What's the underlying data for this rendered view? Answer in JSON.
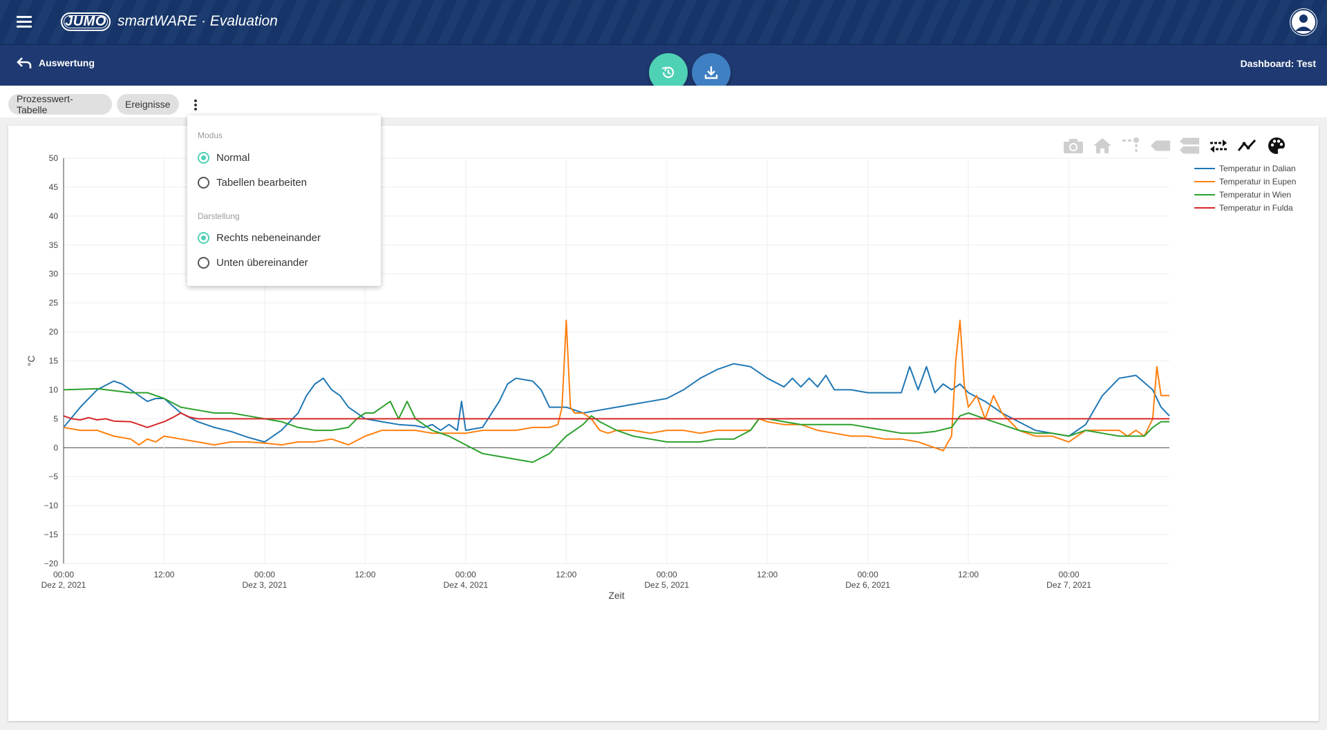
{
  "header": {
    "brand": "JUMO",
    "app_name": "smartWARE · Evaluation",
    "menu_icon": "menu-icon",
    "user_icon": "user-avatar-icon"
  },
  "subheader": {
    "back_label": "Auswertung",
    "dashboard_title": "Dashboard: Test"
  },
  "tabs": [
    "Prozesswert-Tabelle",
    "Ereignisse"
  ],
  "menu": {
    "section1": "Modus",
    "opt1": "Normal",
    "opt2": "Tabellen bearbeiten",
    "section2": "Darstellung",
    "opt3": "Rechts nebeneinander",
    "opt4": "Unten übereinander"
  },
  "colors": {
    "header": "#17366b",
    "accent": "#4fd1b5",
    "download": "#3f7fc3"
  },
  "chart_data": {
    "type": "line",
    "title": "",
    "xlabel": "Zeit",
    "ylabel": "°C",
    "ylim": [
      -20,
      50
    ],
    "xlim": [
      0,
      132
    ],
    "yticks": [
      -20,
      -15,
      -10,
      -5,
      0,
      5,
      10,
      15,
      20,
      25,
      30,
      35,
      40,
      45,
      50
    ],
    "xticks": [
      {
        "x": 0,
        "l1": "00:00",
        "l2": "Dez 2, 2021"
      },
      {
        "x": 12,
        "l1": "12:00",
        "l2": ""
      },
      {
        "x": 24,
        "l1": "00:00",
        "l2": "Dez 3, 2021"
      },
      {
        "x": 36,
        "l1": "12:00",
        "l2": ""
      },
      {
        "x": 48,
        "l1": "00:00",
        "l2": "Dez 4, 2021"
      },
      {
        "x": 60,
        "l1": "12:00",
        "l2": ""
      },
      {
        "x": 72,
        "l1": "00:00",
        "l2": "Dez 5, 2021"
      },
      {
        "x": 84,
        "l1": "12:00",
        "l2": ""
      },
      {
        "x": 96,
        "l1": "00:00",
        "l2": "Dez 6, 2021"
      },
      {
        "x": 108,
        "l1": "12:00",
        "l2": ""
      },
      {
        "x": 120,
        "l1": "00:00",
        "l2": "Dez 7, 2021"
      }
    ],
    "legend_position": "top-right",
    "series": [
      {
        "name": "Temperatur in Dalian",
        "color": "#1f77b4",
        "points": [
          [
            0,
            3.5
          ],
          [
            2,
            7
          ],
          [
            4,
            10
          ],
          [
            6,
            11.5
          ],
          [
            7,
            11
          ],
          [
            8,
            10
          ],
          [
            9,
            9
          ],
          [
            10,
            8
          ],
          [
            11,
            8.5
          ],
          [
            12,
            8.5
          ],
          [
            14,
            6
          ],
          [
            16,
            4.5
          ],
          [
            18,
            3.5
          ],
          [
            20,
            2.8
          ],
          [
            22,
            1.8
          ],
          [
            24,
            1
          ],
          [
            26,
            3
          ],
          [
            28,
            6
          ],
          [
            29,
            9
          ],
          [
            30,
            11
          ],
          [
            31,
            12
          ],
          [
            32,
            10
          ],
          [
            33,
            9
          ],
          [
            34,
            7
          ],
          [
            36,
            5
          ],
          [
            38,
            4.5
          ],
          [
            40,
            4
          ],
          [
            42,
            3.8
          ],
          [
            43,
            3.5
          ],
          [
            44,
            4
          ],
          [
            45,
            3
          ],
          [
            46,
            4
          ],
          [
            47,
            3
          ],
          [
            47.5,
            8
          ],
          [
            48,
            3
          ],
          [
            50,
            3.5
          ],
          [
            52,
            8
          ],
          [
            53,
            11
          ],
          [
            54,
            12
          ],
          [
            56,
            11.5
          ],
          [
            57,
            10
          ],
          [
            58,
            7
          ],
          [
            60,
            7
          ],
          [
            62,
            6
          ],
          [
            64,
            6.5
          ],
          [
            66,
            7
          ],
          [
            68,
            7.5
          ],
          [
            70,
            8
          ],
          [
            72,
            8.5
          ],
          [
            74,
            10
          ],
          [
            76,
            12
          ],
          [
            78,
            13.5
          ],
          [
            80,
            14.5
          ],
          [
            82,
            14
          ],
          [
            84,
            12
          ],
          [
            86,
            10.5
          ],
          [
            87,
            12
          ],
          [
            88,
            10.5
          ],
          [
            89,
            12
          ],
          [
            90,
            10.5
          ],
          [
            91,
            12.5
          ],
          [
            92,
            10
          ],
          [
            94,
            10
          ],
          [
            96,
            9.5
          ],
          [
            98,
            9.5
          ],
          [
            100,
            9.5
          ],
          [
            101,
            14
          ],
          [
            102,
            10
          ],
          [
            103,
            14
          ],
          [
            104,
            9.5
          ],
          [
            105,
            11
          ],
          [
            106,
            10
          ],
          [
            107,
            11
          ],
          [
            108,
            9.5
          ],
          [
            110,
            8
          ],
          [
            112,
            6
          ],
          [
            114,
            4.5
          ],
          [
            116,
            3
          ],
          [
            118,
            2.5
          ],
          [
            120,
            2
          ],
          [
            122,
            4
          ],
          [
            124,
            9
          ],
          [
            126,
            12
          ],
          [
            128,
            12.5
          ],
          [
            130,
            10
          ],
          [
            131,
            7
          ],
          [
            132,
            5.5
          ]
        ]
      },
      {
        "name": "Temperatur in Eupen",
        "color": "#ff7f0e",
        "points": [
          [
            0,
            3.5
          ],
          [
            2,
            3
          ],
          [
            4,
            3
          ],
          [
            6,
            2
          ],
          [
            8,
            1.5
          ],
          [
            9,
            0.5
          ],
          [
            10,
            1.5
          ],
          [
            11,
            1
          ],
          [
            12,
            2
          ],
          [
            14,
            1.5
          ],
          [
            16,
            1
          ],
          [
            18,
            0.5
          ],
          [
            20,
            1
          ],
          [
            22,
            1
          ],
          [
            24,
            0.8
          ],
          [
            26,
            0.5
          ],
          [
            28,
            1
          ],
          [
            30,
            1
          ],
          [
            32,
            1.5
          ],
          [
            34,
            0.5
          ],
          [
            36,
            2
          ],
          [
            38,
            3
          ],
          [
            40,
            3
          ],
          [
            42,
            3
          ],
          [
            44,
            2.5
          ],
          [
            46,
            2.5
          ],
          [
            48,
            2.5
          ],
          [
            50,
            3
          ],
          [
            52,
            3
          ],
          [
            54,
            3
          ],
          [
            56,
            3.5
          ],
          [
            58,
            3.5
          ],
          [
            59,
            4
          ],
          [
            59.5,
            7
          ],
          [
            60,
            22
          ],
          [
            60.5,
            7
          ],
          [
            61,
            6
          ],
          [
            62,
            6
          ],
          [
            63,
            5
          ],
          [
            64,
            3
          ],
          [
            65,
            2.5
          ],
          [
            66,
            3
          ],
          [
            68,
            3
          ],
          [
            70,
            2.5
          ],
          [
            72,
            3
          ],
          [
            74,
            3
          ],
          [
            76,
            2.5
          ],
          [
            78,
            3
          ],
          [
            80,
            3
          ],
          [
            82,
            3
          ],
          [
            83,
            5
          ],
          [
            84,
            4.5
          ],
          [
            86,
            4
          ],
          [
            88,
            4
          ],
          [
            90,
            3
          ],
          [
            92,
            2.5
          ],
          [
            94,
            2
          ],
          [
            96,
            2
          ],
          [
            98,
            1.5
          ],
          [
            100,
            1.5
          ],
          [
            102,
            1
          ],
          [
            104,
            0
          ],
          [
            105,
            -0.5
          ],
          [
            106,
            2
          ],
          [
            106.5,
            15
          ],
          [
            107,
            22
          ],
          [
            107.5,
            11
          ],
          [
            108,
            7
          ],
          [
            109,
            9
          ],
          [
            110,
            5
          ],
          [
            111,
            9
          ],
          [
            112,
            6
          ],
          [
            114,
            3
          ],
          [
            116,
            2
          ],
          [
            118,
            2
          ],
          [
            120,
            1
          ],
          [
            122,
            3
          ],
          [
            124,
            3
          ],
          [
            126,
            3
          ],
          [
            127,
            2
          ],
          [
            128,
            3
          ],
          [
            129,
            2
          ],
          [
            130,
            5
          ],
          [
            130.5,
            14
          ],
          [
            131,
            9
          ],
          [
            132,
            9
          ]
        ]
      },
      {
        "name": "Temperatur in Wien",
        "color": "#2ca02c",
        "points": [
          [
            0,
            10
          ],
          [
            4,
            10.2
          ],
          [
            8,
            9.5
          ],
          [
            10,
            9.5
          ],
          [
            12,
            8.5
          ],
          [
            14,
            7
          ],
          [
            16,
            6.5
          ],
          [
            18,
            6
          ],
          [
            20,
            6
          ],
          [
            22,
            5.5
          ],
          [
            24,
            5
          ],
          [
            26,
            4.5
          ],
          [
            28,
            3.5
          ],
          [
            30,
            3
          ],
          [
            32,
            3
          ],
          [
            34,
            3.5
          ],
          [
            35,
            5
          ],
          [
            36,
            6
          ],
          [
            37,
            6
          ],
          [
            38,
            7
          ],
          [
            39,
            8
          ],
          [
            40,
            5
          ],
          [
            41,
            8
          ],
          [
            42,
            5
          ],
          [
            43,
            4
          ],
          [
            44,
            3
          ],
          [
            46,
            2
          ],
          [
            48,
            0.5
          ],
          [
            50,
            -1
          ],
          [
            52,
            -1.5
          ],
          [
            54,
            -2
          ],
          [
            56,
            -2.5
          ],
          [
            58,
            -1
          ],
          [
            60,
            2
          ],
          [
            62,
            4
          ],
          [
            63,
            5.5
          ],
          [
            64,
            4.5
          ],
          [
            66,
            3
          ],
          [
            68,
            2
          ],
          [
            70,
            1.5
          ],
          [
            72,
            1
          ],
          [
            74,
            1
          ],
          [
            76,
            1
          ],
          [
            78,
            1.5
          ],
          [
            80,
            1.5
          ],
          [
            82,
            3
          ],
          [
            83,
            5
          ],
          [
            84,
            5
          ],
          [
            86,
            4.5
          ],
          [
            88,
            4
          ],
          [
            90,
            4
          ],
          [
            92,
            4
          ],
          [
            94,
            4
          ],
          [
            96,
            3.5
          ],
          [
            98,
            3
          ],
          [
            100,
            2.5
          ],
          [
            102,
            2.5
          ],
          [
            104,
            2.8
          ],
          [
            106,
            3.5
          ],
          [
            107,
            5.5
          ],
          [
            108,
            6
          ],
          [
            110,
            5
          ],
          [
            112,
            4
          ],
          [
            114,
            3
          ],
          [
            116,
            2.5
          ],
          [
            118,
            2.5
          ],
          [
            120,
            2
          ],
          [
            122,
            3
          ],
          [
            124,
            2.5
          ],
          [
            126,
            2
          ],
          [
            128,
            2
          ],
          [
            129,
            2
          ],
          [
            130,
            3.5
          ],
          [
            131,
            4.5
          ],
          [
            132,
            4.5
          ]
        ]
      },
      {
        "name": "Temperatur in Fulda",
        "color": "#d62728",
        "points": [
          [
            0,
            5.5
          ],
          [
            1,
            5
          ],
          [
            2,
            4.8
          ],
          [
            3,
            5.2
          ],
          [
            4,
            4.8
          ],
          [
            5,
            5
          ],
          [
            6,
            4.6
          ],
          [
            8,
            4.5
          ],
          [
            9,
            4
          ],
          [
            10,
            3.5
          ],
          [
            11,
            4
          ],
          [
            12,
            4.5
          ],
          [
            13,
            5.2
          ],
          [
            14,
            6
          ],
          [
            15,
            5.3
          ],
          [
            16,
            5
          ],
          [
            132,
            5
          ]
        ]
      }
    ]
  },
  "modebar_icons": [
    "camera-icon",
    "home-icon",
    "spike-lines-icon",
    "hover-closest-icon",
    "hover-compare-icon",
    "compare-arrows-icon",
    "trend-line-icon",
    "palette-icon"
  ]
}
